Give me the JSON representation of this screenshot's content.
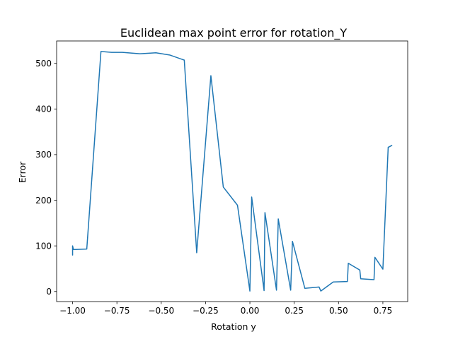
{
  "chart_data": {
    "type": "line",
    "title": "Euclidean max point error for rotation_Y",
    "xlabel": "Rotation y",
    "ylabel": "Error",
    "xlim": [
      -1.09,
      0.89
    ],
    "ylim": [
      -22,
      549
    ],
    "xticks": [
      -1.0,
      -0.75,
      -0.5,
      -0.25,
      0.0,
      0.25,
      0.5,
      0.75
    ],
    "xtick_labels": [
      "−1.00",
      "−0.75",
      "−0.50",
      "−0.25",
      "0.00",
      "0.25",
      "0.50",
      "0.75"
    ],
    "yticks": [
      0,
      100,
      200,
      300,
      400,
      500
    ],
    "ytick_labels": [
      "0",
      "100",
      "200",
      "300",
      "400",
      "500"
    ],
    "grid": false,
    "series": [
      {
        "name": "",
        "color": "#1f77b4",
        "x": [
          -1.0,
          -1.0,
          -1.0,
          -0.995,
          -0.92,
          -0.84,
          -0.78,
          -0.72,
          -0.62,
          -0.53,
          -0.45,
          -0.37,
          -0.3,
          -0.22,
          -0.15,
          -0.07,
          0.0,
          0.01,
          0.08,
          0.085,
          0.15,
          0.16,
          0.23,
          0.24,
          0.31,
          0.39,
          0.4,
          0.47,
          0.55,
          0.555,
          0.62,
          0.625,
          0.7,
          0.705,
          0.75,
          0.78,
          0.79,
          0.8
        ],
        "y": [
          97,
          80,
          100,
          92,
          93,
          526,
          524,
          524,
          521,
          523,
          518,
          507,
          85,
          473,
          229,
          189,
          1,
          207,
          2,
          173,
          3,
          159,
          3,
          110,
          7,
          10,
          1,
          21,
          22,
          62,
          47,
          28,
          26,
          75,
          49,
          316,
          318,
          320
        ]
      }
    ]
  }
}
